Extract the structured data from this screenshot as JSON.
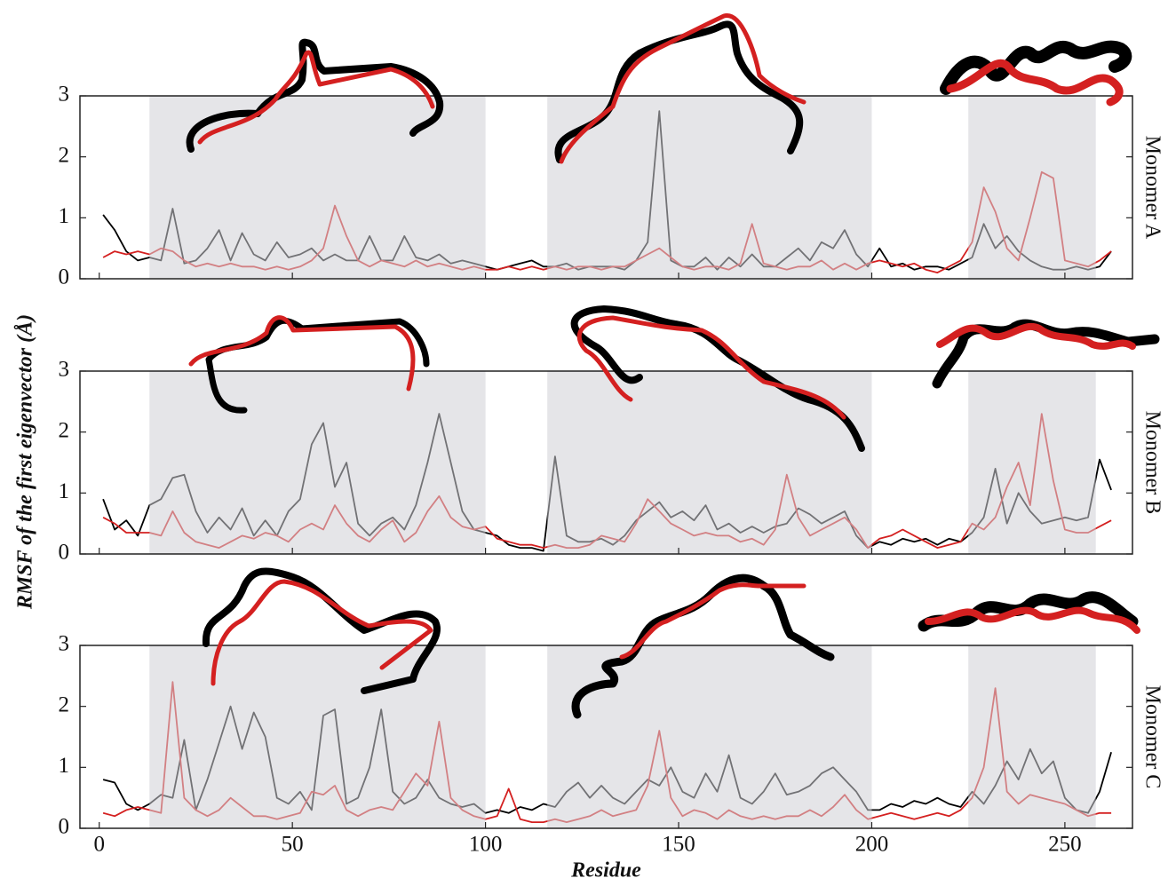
{
  "chart_data": [
    {
      "type": "line",
      "title": "Monomer A",
      "x_tick_labels": false,
      "x": [
        1,
        4,
        7,
        10,
        13,
        16,
        19,
        22,
        25,
        28,
        31,
        34,
        37,
        40,
        43,
        46,
        49,
        52,
        55,
        58,
        61,
        64,
        67,
        70,
        73,
        76,
        79,
        82,
        85,
        88,
        91,
        94,
        97,
        100,
        103,
        106,
        109,
        112,
        115,
        118,
        121,
        124,
        127,
        130,
        133,
        136,
        139,
        142,
        145,
        148,
        151,
        154,
        157,
        160,
        163,
        166,
        169,
        172,
        175,
        178,
        181,
        184,
        187,
        190,
        193,
        196,
        199,
        202,
        205,
        208,
        211,
        214,
        217,
        220,
        223,
        226,
        229,
        232,
        235,
        238,
        241,
        244,
        247,
        250,
        253,
        256,
        259,
        262
      ],
      "series": [
        {
          "color": "#000000",
          "values": [
            1.05,
            0.8,
            0.45,
            0.3,
            0.35,
            0.3,
            1.15,
            0.25,
            0.3,
            0.5,
            0.8,
            0.3,
            0.75,
            0.4,
            0.3,
            0.6,
            0.35,
            0.4,
            0.5,
            0.3,
            0.4,
            0.3,
            0.3,
            0.7,
            0.3,
            0.3,
            0.7,
            0.35,
            0.3,
            0.4,
            0.25,
            0.3,
            0.25,
            0.2,
            0.15,
            0.2,
            0.25,
            0.3,
            0.2,
            0.2,
            0.25,
            0.15,
            0.2,
            0.2,
            0.2,
            0.15,
            0.3,
            0.6,
            2.75,
            0.3,
            0.2,
            0.2,
            0.35,
            0.15,
            0.35,
            0.2,
            0.4,
            0.2,
            0.2,
            0.35,
            0.5,
            0.3,
            0.6,
            0.5,
            0.8,
            0.4,
            0.2,
            0.5,
            0.2,
            0.25,
            0.15,
            0.2,
            0.2,
            0.15,
            0.25,
            0.35,
            0.9,
            0.5,
            0.7,
            0.45,
            0.3,
            0.2,
            0.15,
            0.15,
            0.2,
            0.15,
            0.2,
            0.45
          ]
        },
        {
          "color": "#d42020",
          "values": [
            0.35,
            0.45,
            0.4,
            0.45,
            0.4,
            0.5,
            0.45,
            0.3,
            0.2,
            0.25,
            0.2,
            0.25,
            0.2,
            0.2,
            0.15,
            0.2,
            0.15,
            0.2,
            0.3,
            0.5,
            1.2,
            0.7,
            0.3,
            0.2,
            0.3,
            0.25,
            0.2,
            0.3,
            0.2,
            0.25,
            0.2,
            0.15,
            0.2,
            0.15,
            0.15,
            0.2,
            0.15,
            0.2,
            0.15,
            0.2,
            0.15,
            0.2,
            0.2,
            0.15,
            0.2,
            0.2,
            0.3,
            0.4,
            0.5,
            0.35,
            0.2,
            0.15,
            0.2,
            0.2,
            0.15,
            0.25,
            0.9,
            0.25,
            0.2,
            0.15,
            0.2,
            0.2,
            0.3,
            0.15,
            0.25,
            0.15,
            0.25,
            0.3,
            0.25,
            0.2,
            0.25,
            0.15,
            0.1,
            0.2,
            0.3,
            0.6,
            1.5,
            1.1,
            0.5,
            0.3,
            1.0,
            1.75,
            1.65,
            0.3,
            0.25,
            0.2,
            0.3,
            0.45
          ]
        }
      ],
      "shaded": [
        [
          13,
          100
        ],
        [
          116,
          200
        ],
        [
          225,
          258
        ]
      ],
      "xlim": [
        -5,
        267.5
      ],
      "ylim": [
        0,
        3
      ],
      "xticks": [
        0,
        50,
        100,
        150,
        200,
        250
      ],
      "yticks": [
        0,
        1,
        2,
        3
      ]
    },
    {
      "type": "line",
      "title": "Monomer B",
      "x_tick_labels": false,
      "y_label": "RMSF of the first eigenvector (Å)",
      "x": [
        1,
        4,
        7,
        10,
        13,
        16,
        19,
        22,
        25,
        28,
        31,
        34,
        37,
        40,
        43,
        46,
        49,
        52,
        55,
        58,
        61,
        64,
        67,
        70,
        73,
        76,
        79,
        82,
        85,
        88,
        91,
        94,
        97,
        100,
        103,
        106,
        109,
        112,
        115,
        118,
        121,
        124,
        127,
        130,
        133,
        136,
        139,
        142,
        145,
        148,
        151,
        154,
        157,
        160,
        163,
        166,
        169,
        172,
        175,
        178,
        181,
        184,
        187,
        190,
        193,
        196,
        199,
        202,
        205,
        208,
        211,
        214,
        217,
        220,
        223,
        226,
        229,
        232,
        235,
        238,
        241,
        244,
        247,
        250,
        253,
        256,
        259,
        262
      ],
      "series": [
        {
          "color": "#000000",
          "values": [
            0.9,
            0.4,
            0.55,
            0.3,
            0.8,
            0.9,
            1.25,
            1.3,
            0.7,
            0.35,
            0.6,
            0.4,
            0.75,
            0.3,
            0.55,
            0.3,
            0.7,
            0.9,
            1.8,
            2.15,
            1.1,
            1.5,
            0.5,
            0.3,
            0.5,
            0.6,
            0.4,
            0.8,
            1.5,
            2.3,
            1.5,
            0.7,
            0.4,
            0.35,
            0.3,
            0.15,
            0.1,
            0.1,
            0.05,
            1.6,
            0.3,
            0.2,
            0.2,
            0.25,
            0.15,
            0.3,
            0.55,
            0.7,
            0.85,
            0.6,
            0.7,
            0.55,
            0.8,
            0.4,
            0.5,
            0.35,
            0.45,
            0.35,
            0.45,
            0.5,
            0.75,
            0.65,
            0.5,
            0.6,
            0.7,
            0.3,
            0.1,
            0.2,
            0.15,
            0.25,
            0.2,
            0.25,
            0.15,
            0.25,
            0.2,
            0.35,
            0.6,
            1.4,
            0.5,
            1.0,
            0.7,
            0.5,
            0.55,
            0.6,
            0.55,
            0.6,
            1.55,
            1.05
          ]
        },
        {
          "color": "#d42020",
          "values": [
            0.6,
            0.5,
            0.35,
            0.35,
            0.35,
            0.3,
            0.7,
            0.35,
            0.2,
            0.15,
            0.1,
            0.2,
            0.3,
            0.25,
            0.35,
            0.3,
            0.2,
            0.4,
            0.5,
            0.4,
            0.8,
            0.5,
            0.3,
            0.2,
            0.4,
            0.55,
            0.2,
            0.35,
            0.7,
            0.95,
            0.6,
            0.45,
            0.4,
            0.45,
            0.25,
            0.2,
            0.15,
            0.15,
            0.1,
            0.15,
            0.1,
            0.1,
            0.15,
            0.3,
            0.25,
            0.2,
            0.5,
            0.9,
            0.7,
            0.5,
            0.4,
            0.3,
            0.35,
            0.3,
            0.3,
            0.2,
            0.25,
            0.15,
            0.4,
            1.3,
            0.6,
            0.3,
            0.4,
            0.5,
            0.6,
            0.4,
            0.1,
            0.25,
            0.3,
            0.4,
            0.3,
            0.2,
            0.1,
            0.15,
            0.2,
            0.5,
            0.4,
            0.6,
            1.1,
            1.5,
            0.8,
            2.3,
            1.2,
            0.4,
            0.35,
            0.35,
            0.45,
            0.55
          ]
        }
      ],
      "shaded": [
        [
          13,
          100
        ],
        [
          116,
          200
        ],
        [
          225,
          258
        ]
      ],
      "xlim": [
        -5,
        267.5
      ],
      "ylim": [
        0,
        3
      ],
      "xticks": [
        0,
        50,
        100,
        150,
        200,
        250
      ],
      "yticks": [
        0,
        1,
        2,
        3
      ]
    },
    {
      "type": "line",
      "title": "Monomer C",
      "x_tick_labels": true,
      "x_label": "Residue",
      "x": [
        1,
        4,
        7,
        10,
        13,
        16,
        19,
        22,
        25,
        28,
        31,
        34,
        37,
        40,
        43,
        46,
        49,
        52,
        55,
        58,
        61,
        64,
        67,
        70,
        73,
        76,
        79,
        82,
        85,
        88,
        91,
        94,
        97,
        100,
        103,
        106,
        109,
        112,
        115,
        118,
        121,
        124,
        127,
        130,
        133,
        136,
        139,
        142,
        145,
        148,
        151,
        154,
        157,
        160,
        163,
        166,
        169,
        172,
        175,
        178,
        181,
        184,
        187,
        190,
        193,
        196,
        199,
        202,
        205,
        208,
        211,
        214,
        217,
        220,
        223,
        226,
        229,
        232,
        235,
        238,
        241,
        244,
        247,
        250,
        253,
        256,
        259,
        262
      ],
      "series": [
        {
          "color": "#000000",
          "values": [
            0.8,
            0.75,
            0.4,
            0.3,
            0.4,
            0.55,
            0.5,
            1.45,
            0.3,
            0.8,
            1.4,
            2.0,
            1.3,
            1.9,
            1.5,
            0.5,
            0.4,
            0.6,
            0.3,
            1.85,
            1.95,
            0.4,
            0.5,
            1.0,
            1.95,
            0.6,
            0.4,
            0.5,
            0.8,
            0.5,
            0.4,
            0.35,
            0.4,
            0.25,
            0.3,
            0.25,
            0.35,
            0.3,
            0.4,
            0.35,
            0.6,
            0.75,
            0.5,
            0.7,
            0.5,
            0.4,
            0.6,
            0.8,
            0.7,
            1.0,
            0.6,
            0.5,
            0.9,
            0.6,
            1.2,
            0.5,
            0.4,
            0.6,
            0.9,
            0.55,
            0.6,
            0.7,
            0.9,
            1.0,
            0.8,
            0.6,
            0.3,
            0.3,
            0.4,
            0.35,
            0.45,
            0.4,
            0.5,
            0.4,
            0.35,
            0.6,
            0.4,
            0.7,
            1.1,
            0.8,
            1.3,
            0.9,
            1.1,
            0.5,
            0.3,
            0.25,
            0.6,
            1.25
          ]
        },
        {
          "color": "#d42020",
          "values": [
            0.25,
            0.2,
            0.3,
            0.35,
            0.3,
            0.25,
            2.4,
            0.5,
            0.3,
            0.2,
            0.3,
            0.5,
            0.35,
            0.2,
            0.2,
            0.15,
            0.2,
            0.25,
            0.6,
            0.55,
            0.7,
            0.3,
            0.2,
            0.3,
            0.35,
            0.3,
            0.6,
            0.9,
            0.7,
            1.75,
            0.5,
            0.3,
            0.2,
            0.15,
            0.2,
            0.65,
            0.15,
            0.1,
            0.1,
            0.15,
            0.1,
            0.15,
            0.2,
            0.3,
            0.2,
            0.25,
            0.3,
            0.7,
            1.6,
            0.5,
            0.2,
            0.3,
            0.25,
            0.15,
            0.3,
            0.2,
            0.15,
            0.2,
            0.15,
            0.2,
            0.2,
            0.3,
            0.2,
            0.35,
            0.55,
            0.3,
            0.15,
            0.2,
            0.25,
            0.2,
            0.15,
            0.2,
            0.25,
            0.2,
            0.3,
            0.5,
            1.0,
            2.3,
            0.6,
            0.4,
            0.55,
            0.5,
            0.45,
            0.4,
            0.3,
            0.2,
            0.25,
            0.25
          ]
        }
      ],
      "shaded": [
        [
          13,
          100
        ],
        [
          116,
          200
        ],
        [
          225,
          258
        ]
      ],
      "xlim": [
        -5,
        267.5
      ],
      "ylim": [
        0,
        3
      ],
      "xticks": [
        0,
        50,
        100,
        150,
        200,
        250
      ],
      "yticks": [
        0,
        1,
        2,
        3
      ]
    }
  ]
}
